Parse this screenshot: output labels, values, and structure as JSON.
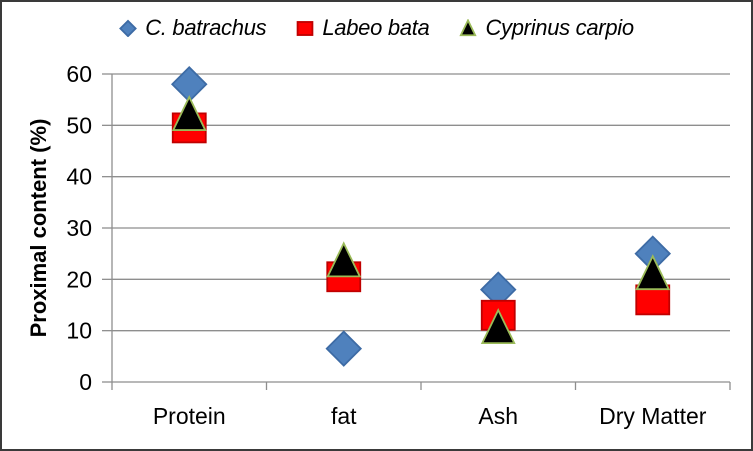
{
  "window": {
    "background": "#ffffff",
    "border_color": "#3a3a3a"
  },
  "chart_data": {
    "type": "scatter",
    "title": "",
    "categories": [
      "Protein",
      "fat",
      "Ash",
      "Dry Matter"
    ],
    "series": [
      {
        "name": "C. batrachus",
        "marker": "diamond",
        "color": "#4f81bd",
        "edge_color": "#3d6ba5",
        "values": [
          58,
          6.5,
          18,
          25
        ]
      },
      {
        "name": "Labeo bata",
        "marker": "square",
        "color": "#ff0000",
        "edge_color": "#c00000",
        "values": [
          49.5,
          20.5,
          13,
          16
        ]
      },
      {
        "name": "Cyprinus carpio",
        "marker": "triangle",
        "color": "#000000",
        "edge_color": "#9bbb59",
        "values": [
          52,
          23.5,
          10.5,
          21
        ]
      }
    ],
    "xlabel": "",
    "ylabel": "Proximal content (%)",
    "ylim": [
      0,
      60
    ],
    "y_ticks": [
      0,
      10,
      20,
      30,
      40,
      50,
      60
    ],
    "grid": "horizontal",
    "legend_position": "top",
    "gridline_color": "#8e8e8e",
    "axis_color": "#8e8e8e",
    "text_color": "#000000"
  }
}
